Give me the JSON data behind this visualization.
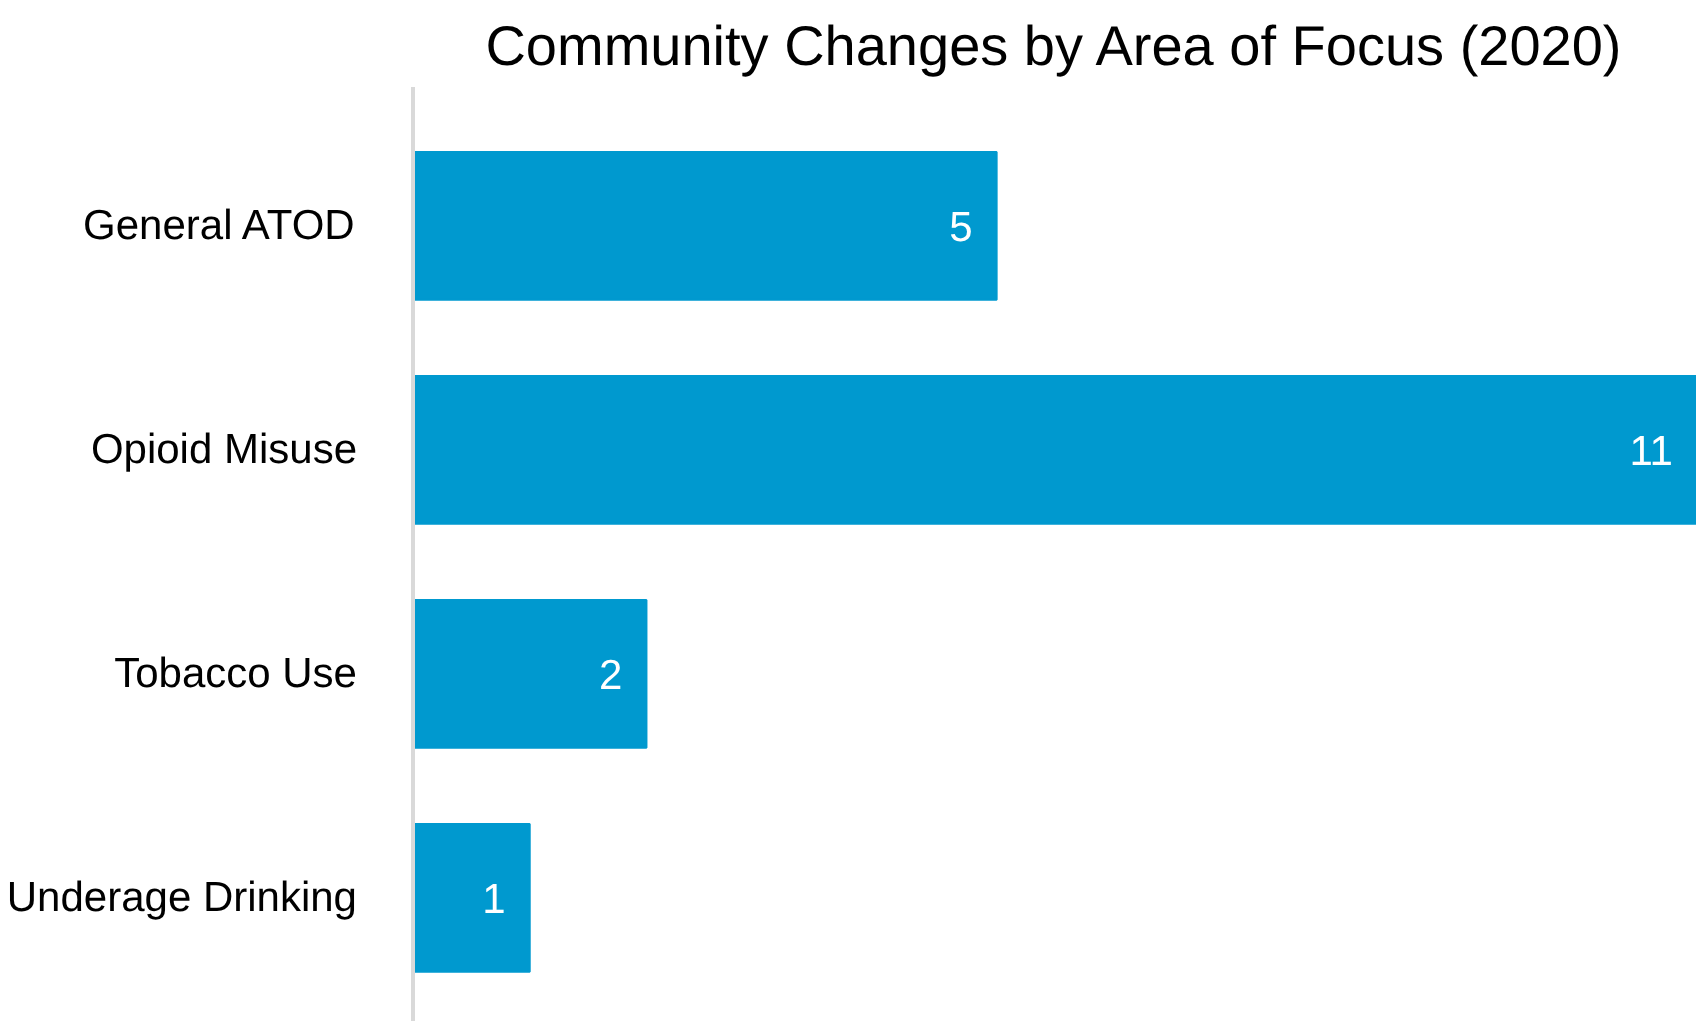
{
  "chart_data": {
    "type": "bar",
    "orientation": "horizontal",
    "title": "Community Changes by Area of Focus (2020)",
    "categories": [
      "General ATOD",
      "Opioid Misuse",
      "Tobacco Use",
      "Underage Drinking"
    ],
    "values": [
      5,
      11,
      2,
      1
    ],
    "color": "#0099cf",
    "data_labels": true
  }
}
